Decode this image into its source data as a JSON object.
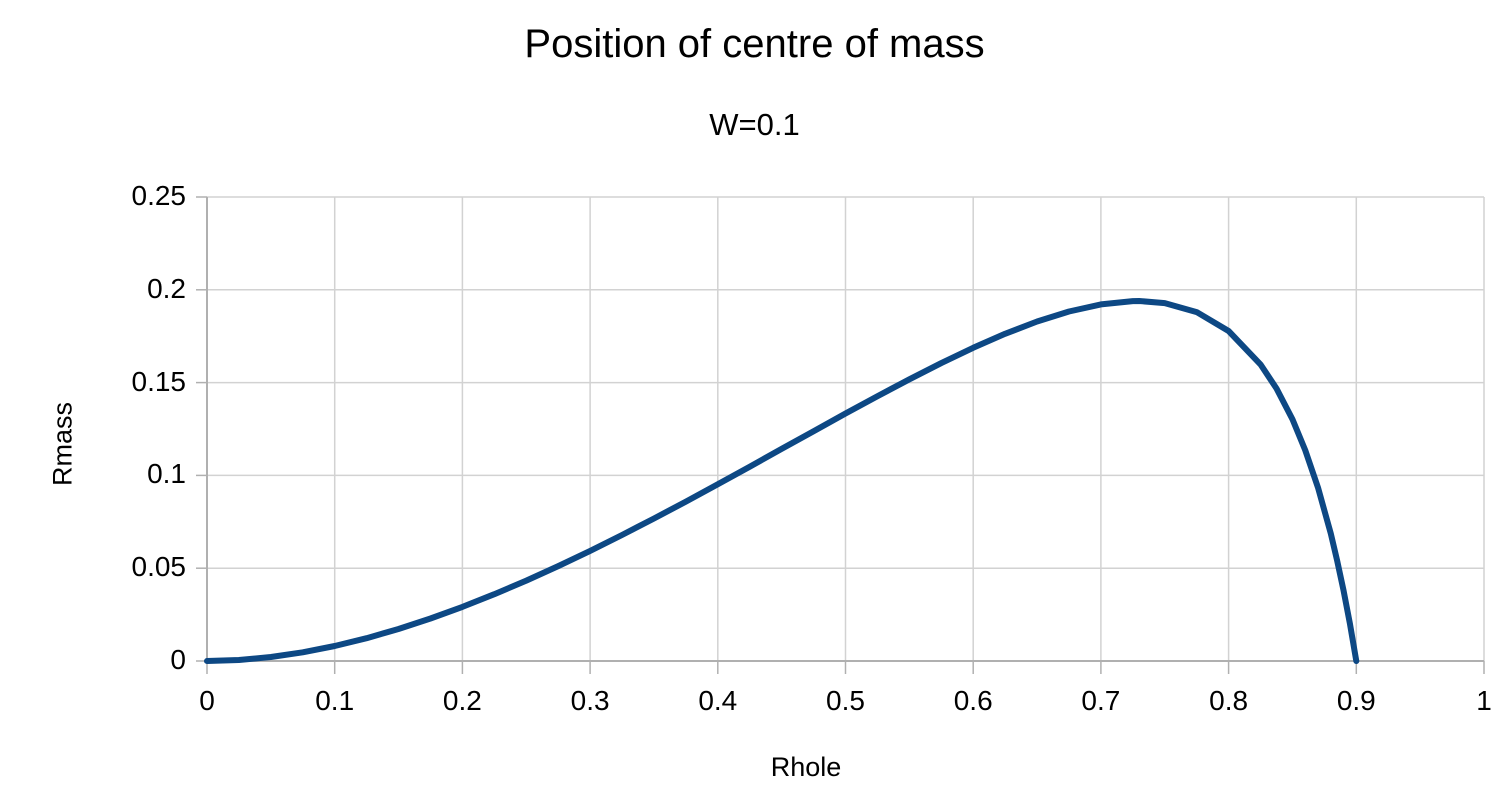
{
  "colors": {
    "background": "#ffffff",
    "text": "#000000",
    "grid": "#d2d2d2",
    "axis": "#b0b0b0",
    "line": "#0d4884"
  },
  "chart_data": {
    "type": "line",
    "title": "Position of centre of mass",
    "subtitle": "W=0.1",
    "xlabel": "Rhole",
    "ylabel": "Rmass",
    "xlim": [
      0,
      1
    ],
    "ylim": [
      0,
      0.25
    ],
    "grid": true,
    "legend": "none",
    "x_ticks": [
      0,
      0.1,
      0.2,
      0.3,
      0.4,
      0.5,
      0.6,
      0.7,
      0.8,
      0.9,
      1
    ],
    "x_tick_labels": [
      "0",
      "0.1",
      "0.2",
      "0.3",
      "0.4",
      "0.5",
      "0.6",
      "0.7",
      "0.8",
      "0.9",
      "1"
    ],
    "y_ticks": [
      0,
      0.05,
      0.1,
      0.15,
      0.2,
      0.25
    ],
    "y_tick_labels": [
      "0",
      "0.05",
      "0.1",
      "0.15",
      "0.2",
      "0.25"
    ],
    "series": [
      {
        "name": "Rmass",
        "color": "#0d4884",
        "points": [
          [
            0,
            0
          ],
          [
            0.025,
            0.00055
          ],
          [
            0.05,
            0.00213
          ],
          [
            0.075,
            0.00467
          ],
          [
            0.1,
            0.00808
          ],
          [
            0.125,
            0.0123
          ],
          [
            0.15,
            0.01726
          ],
          [
            0.175,
            0.02291
          ],
          [
            0.2,
            0.02917
          ],
          [
            0.225,
            0.036
          ],
          [
            0.25,
            0.04333
          ],
          [
            0.275,
            0.05113
          ],
          [
            0.3,
            0.05934
          ],
          [
            0.325,
            0.06791
          ],
          [
            0.35,
            0.07678
          ],
          [
            0.375,
            0.08591
          ],
          [
            0.4,
            0.09524
          ],
          [
            0.425,
            0.10471
          ],
          [
            0.45,
            0.11426
          ],
          [
            0.475,
            0.12384
          ],
          [
            0.5,
            0.13333
          ],
          [
            0.525,
            0.14269
          ],
          [
            0.55,
            0.15179
          ],
          [
            0.575,
            0.16053
          ],
          [
            0.6,
            0.16875
          ],
          [
            0.625,
            0.17628
          ],
          [
            0.65,
            0.1829
          ],
          [
            0.675,
            0.18832
          ],
          [
            0.7,
            0.19216
          ],
          [
            0.725,
            0.19391
          ],
          [
            0.73,
            0.19394
          ],
          [
            0.75,
            0.19286
          ],
          [
            0.775,
            0.18799
          ],
          [
            0.8,
            0.17778
          ],
          [
            0.825,
            0.15983
          ],
          [
            0.8375,
            0.14682
          ],
          [
            0.85,
            0.13018
          ],
          [
            0.86,
            0.11361
          ],
          [
            0.87,
            0.0934
          ],
          [
            0.88,
            0.06865
          ],
          [
            0.885,
            0.0542
          ],
          [
            0.89,
            0.0381
          ],
          [
            0.895,
            0.02013
          ],
          [
            0.9,
            0
          ]
        ]
      }
    ]
  }
}
